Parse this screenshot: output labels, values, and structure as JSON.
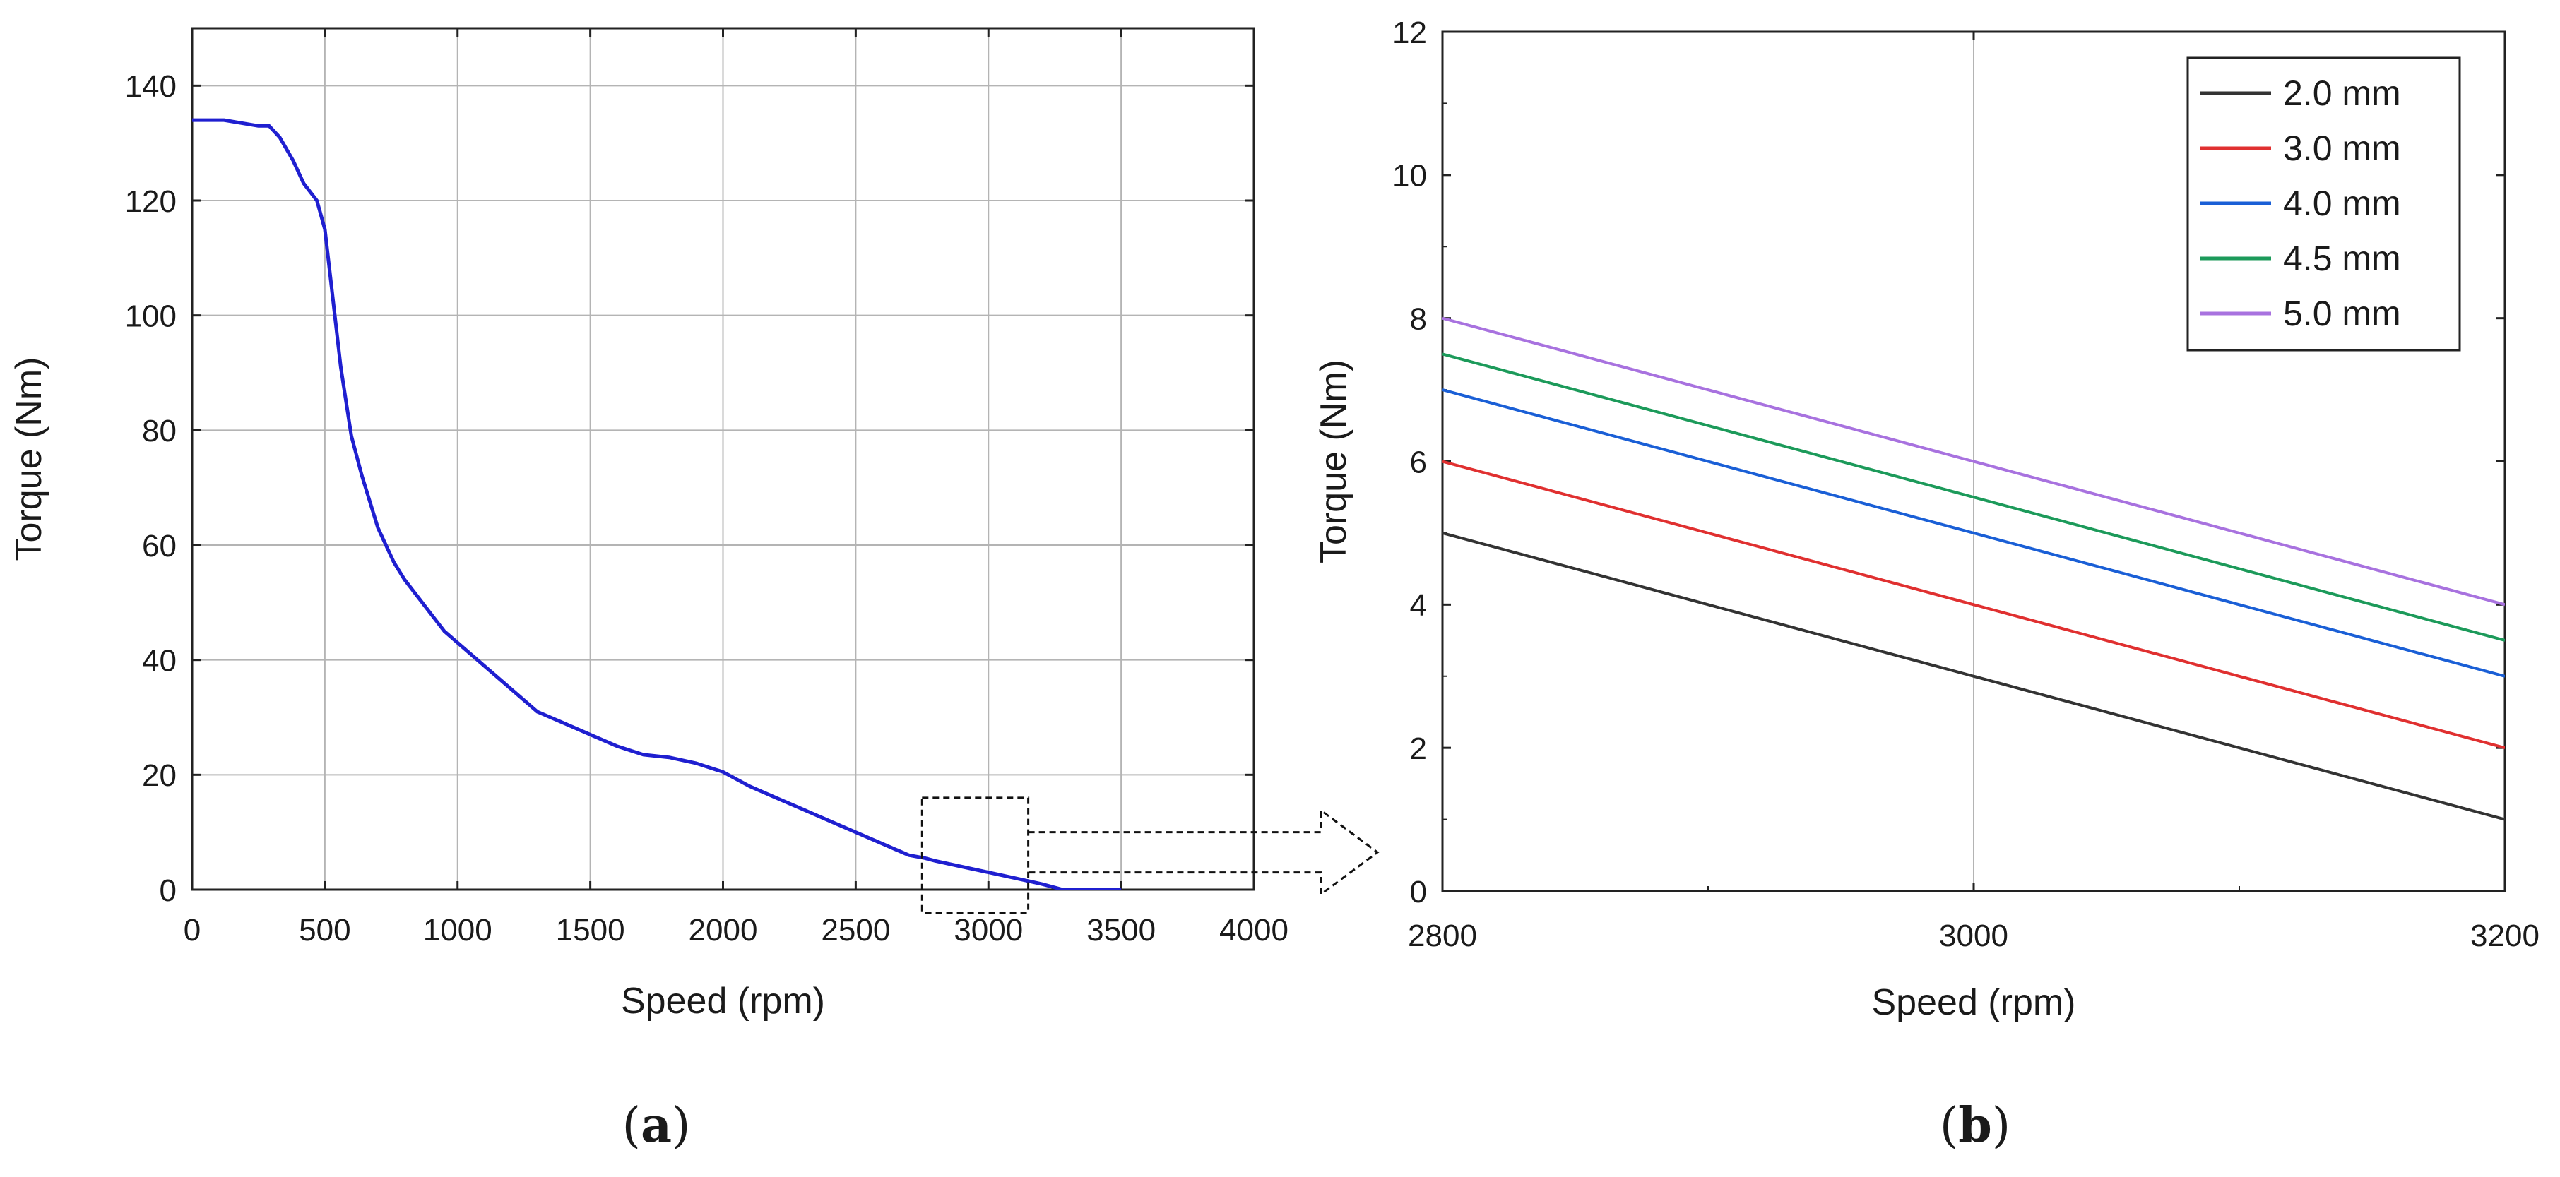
{
  "chart_data": [
    {
      "id": "a",
      "type": "line",
      "title": "",
      "xlabel": "Speed (rpm)",
      "ylabel": "Torque (Nm)",
      "xlim": [
        0,
        4000
      ],
      "ylim": [
        0,
        150
      ],
      "xticks": [
        0,
        500,
        1000,
        1500,
        2000,
        2500,
        3000,
        3500,
        4000
      ],
      "yticks": [
        0,
        20,
        40,
        60,
        80,
        100,
        120,
        140
      ],
      "grid": true,
      "legend": "none",
      "colors": [
        "#1f1fd0"
      ],
      "series": [
        {
          "x": [
            0,
            120,
            250,
            290,
            330,
            380,
            420,
            470,
            500,
            520,
            540,
            560,
            580,
            600,
            640,
            700,
            760,
            800,
            850,
            900,
            950,
            1000,
            1100,
            1200,
            1300,
            1400,
            1500,
            1600,
            1700,
            1800,
            1900,
            2000,
            2100,
            2200,
            2300,
            2400,
            2500,
            2600,
            2700,
            2760,
            2800,
            2900,
            3000,
            3100,
            3200,
            3280,
            3400,
            3500
          ],
          "y": [
            134,
            134,
            133,
            133,
            131,
            127,
            123,
            120,
            115,
            107,
            99,
            91,
            85,
            79,
            72,
            63,
            57,
            54,
            51,
            48,
            45,
            43,
            39,
            35,
            31,
            29,
            27,
            25,
            23.5,
            23,
            22,
            20.5,
            18,
            16,
            14,
            12,
            10,
            8,
            6,
            5.5,
            5,
            4,
            3,
            2,
            1,
            0,
            0,
            0
          ]
        }
      ],
      "zoom_box": {
        "x": [
          2750,
          3150
        ],
        "y": [
          -4,
          16
        ]
      }
    },
    {
      "id": "b",
      "type": "line",
      "title": "",
      "xlabel": "Speed (rpm)",
      "ylabel": "Torque (Nm)",
      "xlim": [
        2800,
        3200
      ],
      "ylim": [
        0,
        12
      ],
      "xticks": [
        2800,
        3000,
        3200
      ],
      "yticks": [
        0,
        2,
        4,
        6,
        8,
        10,
        12
      ],
      "grid": true,
      "legend": "top-right",
      "series": [
        {
          "name": "2.0 mm",
          "color": "#333333",
          "x": [
            2800,
            3200
          ],
          "y": [
            5,
            1
          ]
        },
        {
          "name": "3.0 mm",
          "color": "#e03030",
          "x": [
            2800,
            3200
          ],
          "y": [
            6,
            2
          ]
        },
        {
          "name": "4.0 mm",
          "color": "#1a5fd6",
          "x": [
            2800,
            3200
          ],
          "y": [
            7,
            3
          ]
        },
        {
          "name": "4.5 mm",
          "color": "#1c9a5a",
          "x": [
            2800,
            3200
          ],
          "y": [
            7.5,
            3.5
          ]
        },
        {
          "name": "5.0 mm",
          "color": "#a872df",
          "x": [
            2800,
            3200
          ],
          "y": [
            8,
            4
          ]
        }
      ]
    }
  ],
  "captions": {
    "a": "a",
    "b": "b"
  }
}
